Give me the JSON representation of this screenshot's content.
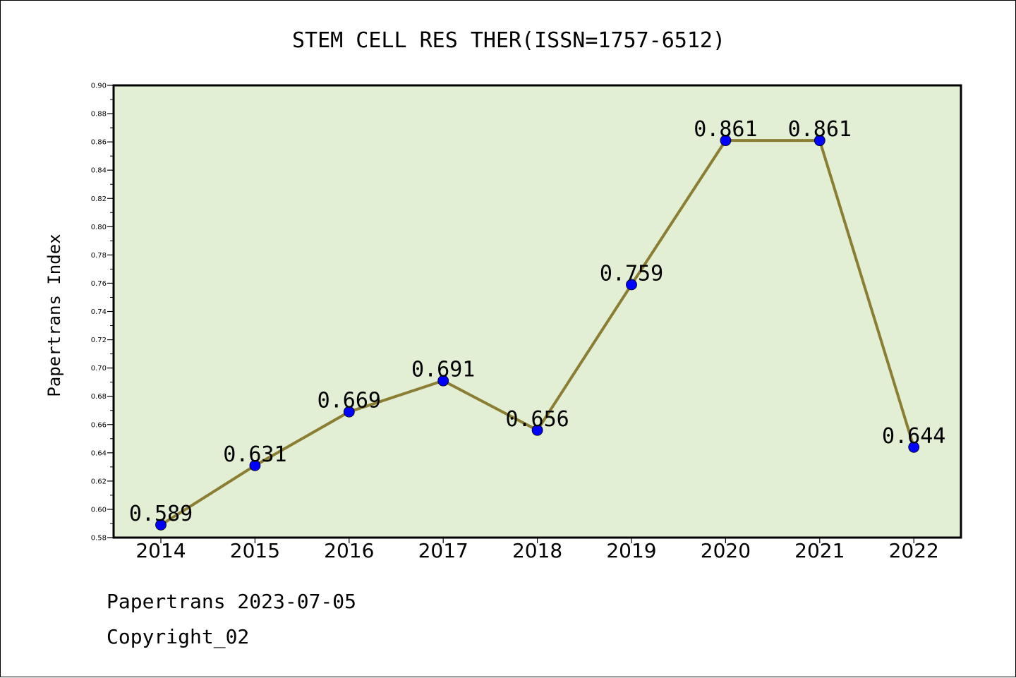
{
  "chart_data": {
    "type": "line",
    "title": "STEM CELL RES THER(ISSN=1757-6512)",
    "xlabel": "",
    "ylabel": "Papertrans Index",
    "categories": [
      "2014",
      "2015",
      "2016",
      "2017",
      "2018",
      "2019",
      "2020",
      "2021",
      "2022"
    ],
    "series": [
      {
        "values": [
          0.589,
          0.631,
          0.669,
          0.691,
          0.656,
          0.759,
          0.861,
          0.861,
          0.644
        ]
      }
    ],
    "data_labels": [
      "0.589",
      "0.631",
      "0.669",
      "0.691",
      "0.656",
      "0.759",
      "0.861",
      "0.861",
      "0.644"
    ],
    "ylim": [
      0.58,
      0.9
    ],
    "yticks": [
      "0.58",
      "0.60",
      "0.62",
      "0.64",
      "0.66",
      "0.68",
      "0.70",
      "0.72",
      "0.74",
      "0.76",
      "0.78",
      "0.80",
      "0.82",
      "0.84",
      "0.86",
      "0.88",
      "0.90"
    ],
    "grid": false,
    "legend": "none",
    "colors": {
      "line": "#8b7d32",
      "marker": "#0000ff",
      "plot_bg": "#e2efd4"
    }
  },
  "footer": {
    "line1": "Papertrans 2023-07-05",
    "line2": "Copyright_02"
  }
}
